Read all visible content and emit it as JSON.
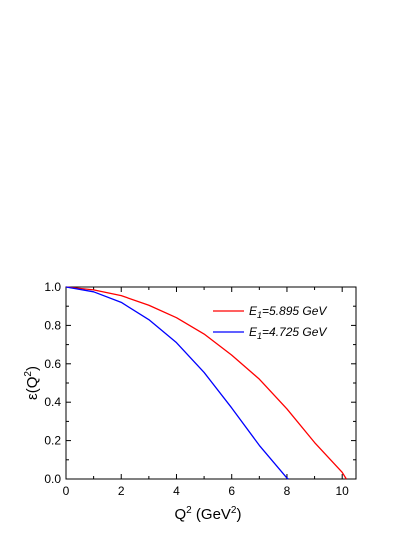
{
  "chart_data": {
    "type": "line",
    "xlabel": {
      "base": "Q",
      "sup": "2",
      "unit_open": " (GeV",
      "unit_sup": "2",
      "unit_close": ")"
    },
    "ylabel": {
      "base": "ε(Q",
      "sup": "2",
      "close": ")"
    },
    "xlim": [
      0,
      10.5
    ],
    "ylim": [
      0,
      1.0
    ],
    "xticks": [
      0,
      2,
      4,
      6,
      8,
      10
    ],
    "yticks": [
      0.0,
      0.2,
      0.4,
      0.6,
      0.8,
      1.0
    ],
    "xtick_labels": [
      "0",
      "2",
      "4",
      "6",
      "8",
      "10"
    ],
    "ytick_labels": [
      "0.0",
      "0.2",
      "0.4",
      "0.6",
      "0.8",
      "1.0"
    ],
    "grid": false,
    "legend_position": "top-right",
    "series": [
      {
        "label_main": "E",
        "label_sub": "1",
        "label_value": "=5.895 GeV",
        "color": "#ff0000",
        "x": [
          0,
          1,
          2,
          3,
          4,
          5,
          6,
          7,
          8,
          9,
          10,
          10.15
        ],
        "y": [
          1.0,
          0.985,
          0.955,
          0.905,
          0.84,
          0.755,
          0.645,
          0.52,
          0.365,
          0.19,
          0.035,
          0.0
        ]
      },
      {
        "label_main": "E",
        "label_sub": "1",
        "label_value": "=4.725 GeV",
        "color": "#0000ff",
        "x": [
          0,
          1,
          2,
          3,
          4,
          5,
          6,
          7,
          8,
          8.05
        ],
        "y": [
          1.0,
          0.975,
          0.92,
          0.83,
          0.71,
          0.555,
          0.37,
          0.175,
          0.005,
          0.0
        ]
      }
    ]
  }
}
